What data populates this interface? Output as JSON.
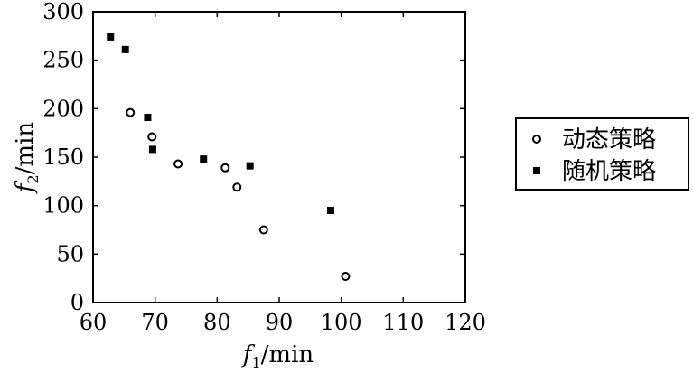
{
  "chart_data": {
    "type": "scatter",
    "xlabel": "f1/min",
    "ylabel": "f2/min",
    "xlim": [
      60,
      120
    ],
    "ylim": [
      0,
      300
    ],
    "xticks": [
      60,
      70,
      80,
      90,
      100,
      110,
      120
    ],
    "yticks": [
      0,
      50,
      100,
      150,
      200,
      250,
      300
    ],
    "grid": false,
    "legend_position": "right",
    "series": [
      {
        "name": "动态策略",
        "marker": "circle",
        "points": [
          {
            "x": 66,
            "y": 196
          },
          {
            "x": 69.5,
            "y": 171
          },
          {
            "x": 73.7,
            "y": 143
          },
          {
            "x": 81.3,
            "y": 139
          },
          {
            "x": 83.2,
            "y": 119
          },
          {
            "x": 87.5,
            "y": 75
          },
          {
            "x": 100.7,
            "y": 27
          }
        ]
      },
      {
        "name": "随机策略",
        "marker": "square",
        "points": [
          {
            "x": 62.8,
            "y": 274
          },
          {
            "x": 65.2,
            "y": 261
          },
          {
            "x": 68.8,
            "y": 191
          },
          {
            "x": 69.6,
            "y": 158
          },
          {
            "x": 77.8,
            "y": 148
          },
          {
            "x": 85.3,
            "y": 141
          },
          {
            "x": 98.3,
            "y": 95
          }
        ]
      }
    ]
  }
}
